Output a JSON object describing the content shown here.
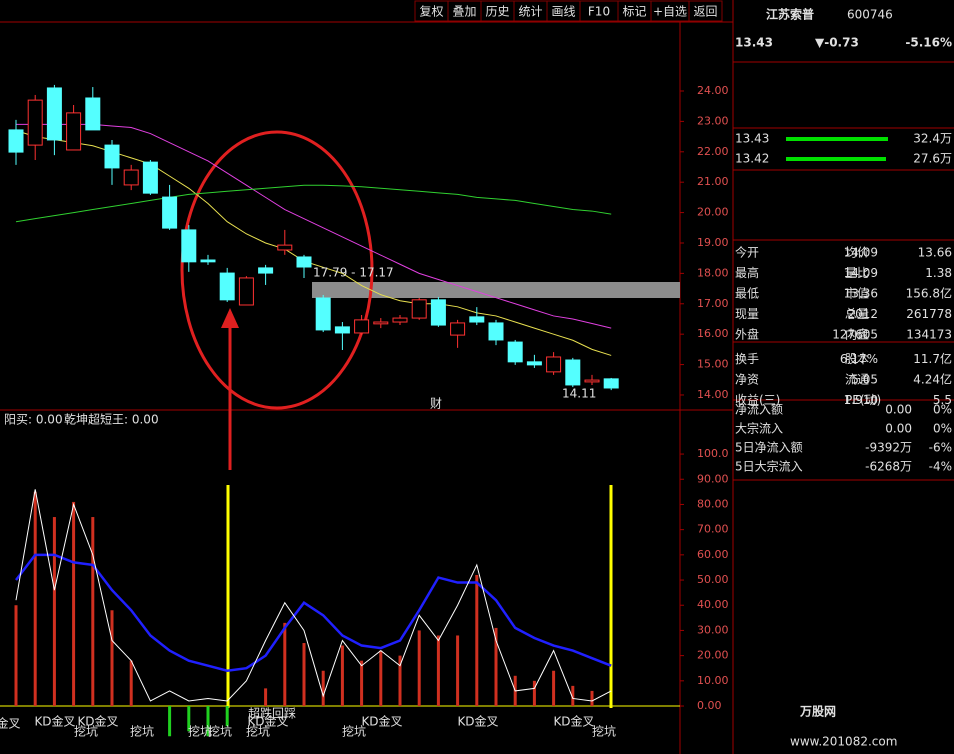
{
  "toolbar": [
    "复权",
    "叠加",
    "历史",
    "统计",
    "画线",
    "F10",
    "标记",
    "+自选",
    "返回"
  ],
  "stock": {
    "name": "江苏索普",
    "code": "600746",
    "price": "13.43",
    "change": "▼-0.73",
    "pct": "-5.16%"
  },
  "orderbook": [
    {
      "price": "13.43",
      "volume": "32.4万"
    },
    {
      "price": "13.42",
      "volume": "27.6万"
    }
  ],
  "stats": [
    [
      {
        "label": "今开",
        "value": "14.09",
        "color": "#ff4040"
      },
      {
        "label": "均价",
        "value": "13.66",
        "color": "#ff4040"
      }
    ],
    [
      {
        "label": "最高",
        "value": "14.09",
        "color": "#ff4040"
      },
      {
        "label": "量比",
        "value": "1.38",
        "color": "#ff4040"
      }
    ],
    [
      {
        "label": "最低",
        "value": "13.36",
        "color": "#00e000"
      },
      {
        "label": "市值",
        "value": "156.8亿",
        "color": "#e0e0e0"
      }
    ],
    [
      {
        "label": "现量",
        "value": "2012",
        "color": "#ff40ff"
      },
      {
        "label": "总量",
        "value": "261778",
        "color": "#e0e0e0"
      }
    ],
    [
      {
        "label": "外盘",
        "value": "127605",
        "color": "#ff4040"
      },
      {
        "label": "内盘",
        "value": "134173",
        "color": "#00e000"
      }
    ],
    [
      {
        "label": "换手",
        "value": "6.17%",
        "color": "#e0e0e0"
      },
      {
        "label": "股本",
        "value": "11.7亿",
        "color": "#e0e0e0"
      }
    ],
    [
      {
        "label": "净资",
        "value": "5.05",
        "color": "#e0e0e0"
      },
      {
        "label": "流通",
        "value": "4.24亿",
        "color": "#e0e0e0"
      }
    ],
    [
      {
        "label": "收益(三)",
        "value": "1.910",
        "color": "#e0e0e0"
      },
      {
        "label": "PE(动)",
        "value": "5.5",
        "color": "#e0e0e0"
      }
    ]
  ],
  "flows": [
    {
      "label": "净流入额",
      "value": "0.00",
      "pct": "0%",
      "color": "#e0e0e0"
    },
    {
      "label": "大宗流入",
      "value": "0.00",
      "pct": "0%",
      "color": "#e0e0e0"
    },
    {
      "label": "5日净流入额",
      "value": "-9392万",
      "pct": "-6%",
      "color": "#00e000"
    },
    {
      "label": "5日大宗流入",
      "value": "-6268万",
      "pct": "-4%",
      "color": "#00e000"
    }
  ],
  "chart_data": [
    {
      "type": "candlestick",
      "ylim": [
        13.67,
        26.27
      ],
      "yticks": [
        {
          "value": 14,
          "label": "14.00"
        },
        {
          "value": 15,
          "label": "15.00"
        },
        {
          "value": 16,
          "label": "16.00"
        },
        {
          "value": 17,
          "label": "17.00"
        },
        {
          "value": 18,
          "label": "18.00"
        },
        {
          "value": 19,
          "label": "19.00"
        },
        {
          "value": 20,
          "label": "20.00"
        },
        {
          "value": 21,
          "label": "21.00"
        },
        {
          "value": 22,
          "label": "22.00"
        },
        {
          "value": 23,
          "label": "23.00"
        },
        {
          "value": 24,
          "label": "24.00"
        }
      ],
      "open": [
        22.72,
        22.22,
        24.1,
        22.06,
        23.77,
        22.22,
        20.91,
        21.66,
        20.51,
        19.43,
        18.44,
        18.01,
        16.96,
        18.18,
        18.77,
        18.54,
        17.19,
        16.24,
        16.04,
        16.34,
        16.4,
        16.53,
        17.13,
        15.97,
        16.57,
        16.37,
        15.74,
        15.09,
        14.76,
        15.15,
        14.43,
        14.53
      ],
      "high": [
        23.05,
        23.87,
        24.2,
        23.54,
        24.13,
        22.39,
        21.57,
        21.73,
        20.91,
        19.59,
        18.61,
        18.18,
        17.91,
        18.28,
        19.43,
        18.61,
        17.29,
        16.4,
        16.63,
        16.53,
        16.63,
        17.19,
        17.22,
        16.47,
        16.89,
        16.47,
        15.81,
        15.32,
        15.41,
        15.22,
        14.66,
        14.56
      ],
      "low": [
        21.57,
        21.73,
        21.89,
        22.06,
        22.72,
        20.91,
        20.74,
        20.58,
        19.43,
        18.05,
        18.28,
        17.06,
        16.96,
        17.62,
        18.61,
        17.85,
        16.07,
        15.48,
        15.97,
        16.2,
        16.3,
        16.47,
        16.24,
        15.55,
        16.3,
        15.64,
        14.99,
        14.89,
        14.66,
        14.26,
        14.33,
        14.16
      ],
      "close": [
        21.99,
        23.7,
        22.39,
        23.28,
        22.72,
        21.47,
        21.4,
        20.64,
        19.49,
        18.38,
        18.38,
        17.13,
        17.85,
        18.01,
        18.93,
        18.21,
        16.14,
        16.04,
        16.47,
        16.4,
        16.53,
        17.13,
        16.3,
        16.37,
        16.4,
        15.81,
        15.09,
        14.99,
        15.25,
        14.33,
        14.49,
        14.23
      ],
      "up_color": "#ff3232",
      "down_color": "#54ffff",
      "series": [
        {
          "color": "#e8e050",
          "values": [
            22.7,
            22.5,
            22.4,
            22.3,
            22.2,
            22.0,
            21.8,
            21.6,
            21.2,
            20.8,
            20.3,
            19.7,
            19.3,
            19.0,
            18.8,
            18.4,
            18.2,
            18.0,
            17.6,
            17.3,
            17.1,
            17.0,
            17.0,
            16.9,
            16.7,
            16.6,
            16.4,
            16.2,
            16.0,
            15.8,
            15.5,
            15.3
          ]
        },
        {
          "color": "#e040e0",
          "values": [
            22.9,
            22.9,
            22.9,
            22.9,
            22.9,
            22.85,
            22.8,
            22.6,
            22.3,
            22.0,
            21.7,
            21.3,
            20.9,
            20.5,
            20.1,
            19.8,
            19.5,
            19.2,
            18.9,
            18.6,
            18.3,
            18.0,
            17.8,
            17.6,
            17.4,
            17.2,
            17.0,
            16.8,
            16.6,
            16.5,
            16.35,
            16.2
          ]
        },
        {
          "color": "#30d030",
          "values": [
            19.7,
            19.8,
            19.9,
            20.0,
            20.1,
            20.2,
            20.3,
            20.4,
            20.5,
            20.6,
            20.65,
            20.7,
            20.75,
            20.8,
            20.85,
            20.9,
            20.9,
            20.88,
            20.85,
            20.8,
            20.75,
            20.7,
            20.65,
            20.6,
            20.5,
            20.45,
            20.4,
            20.3,
            20.2,
            20.1,
            20.05,
            19.95
          ]
        }
      ],
      "annotations": [
        "17.79 - 17.17",
        "14.11",
        "财"
      ]
    },
    {
      "type": "bar",
      "title": "乾坤超短王: 0.00",
      "subtitle": "阳买: 0.00",
      "ylim": [
        -11.5,
        115.5
      ],
      "yticks": [
        {
          "value": 0,
          "label": "0.00"
        },
        {
          "value": 10,
          "label": "10.00"
        },
        {
          "value": 20,
          "label": "20.00"
        },
        {
          "value": 30,
          "label": "30.00"
        },
        {
          "value": 40,
          "label": "40.00"
        },
        {
          "value": 50,
          "label": "50.00"
        },
        {
          "value": 60,
          "label": "60.00"
        },
        {
          "value": 70,
          "label": "70.00"
        },
        {
          "value": 80,
          "label": "80.00"
        },
        {
          "value": 90,
          "label": "90.00"
        },
        {
          "value": 100,
          "label": "100.0"
        }
      ],
      "values": [
        40,
        85,
        75,
        81,
        75,
        38,
        18,
        null,
        -12,
        -10,
        -12,
        -8,
        null,
        7,
        33,
        25,
        14,
        24,
        18,
        22,
        20,
        30,
        28,
        28,
        52,
        31,
        12,
        10,
        14,
        8,
        6,
        null
      ],
      "pos_color": "#d03020",
      "neg_color": "#20d020",
      "series": [
        {
          "color": "#2020ff",
          "values": [
            50,
            60,
            60,
            57,
            56,
            46,
            38,
            28,
            22,
            18,
            16,
            14,
            15,
            20,
            31,
            41,
            36,
            28,
            24,
            23,
            26,
            38,
            51,
            49,
            49,
            42,
            31,
            27,
            24,
            22,
            19,
            16
          ]
        },
        {
          "color": "#ffffff",
          "values": [
            42,
            86,
            46,
            80,
            60,
            26,
            18,
            2,
            6,
            2,
            3,
            2,
            10,
            26,
            41,
            30,
            4,
            26,
            16,
            22,
            16,
            36,
            26,
            40,
            56,
            26,
            6,
            7,
            22,
            3,
            2,
            6
          ]
        }
      ],
      "signals": [
        "KD金叉",
        "KD金叉",
        "KD金叉",
        "KD金叉",
        "KD金叉",
        "KD金叉",
        "KD金叉",
        "挖坑",
        "挖坑",
        "挖坑",
        "挖坑",
        "挖坑",
        "挖坑",
        "挖坑",
        "超跌回踩"
      ]
    }
  ],
  "watermark": {
    "logo": "万股网",
    "url": "www.201082.com"
  }
}
